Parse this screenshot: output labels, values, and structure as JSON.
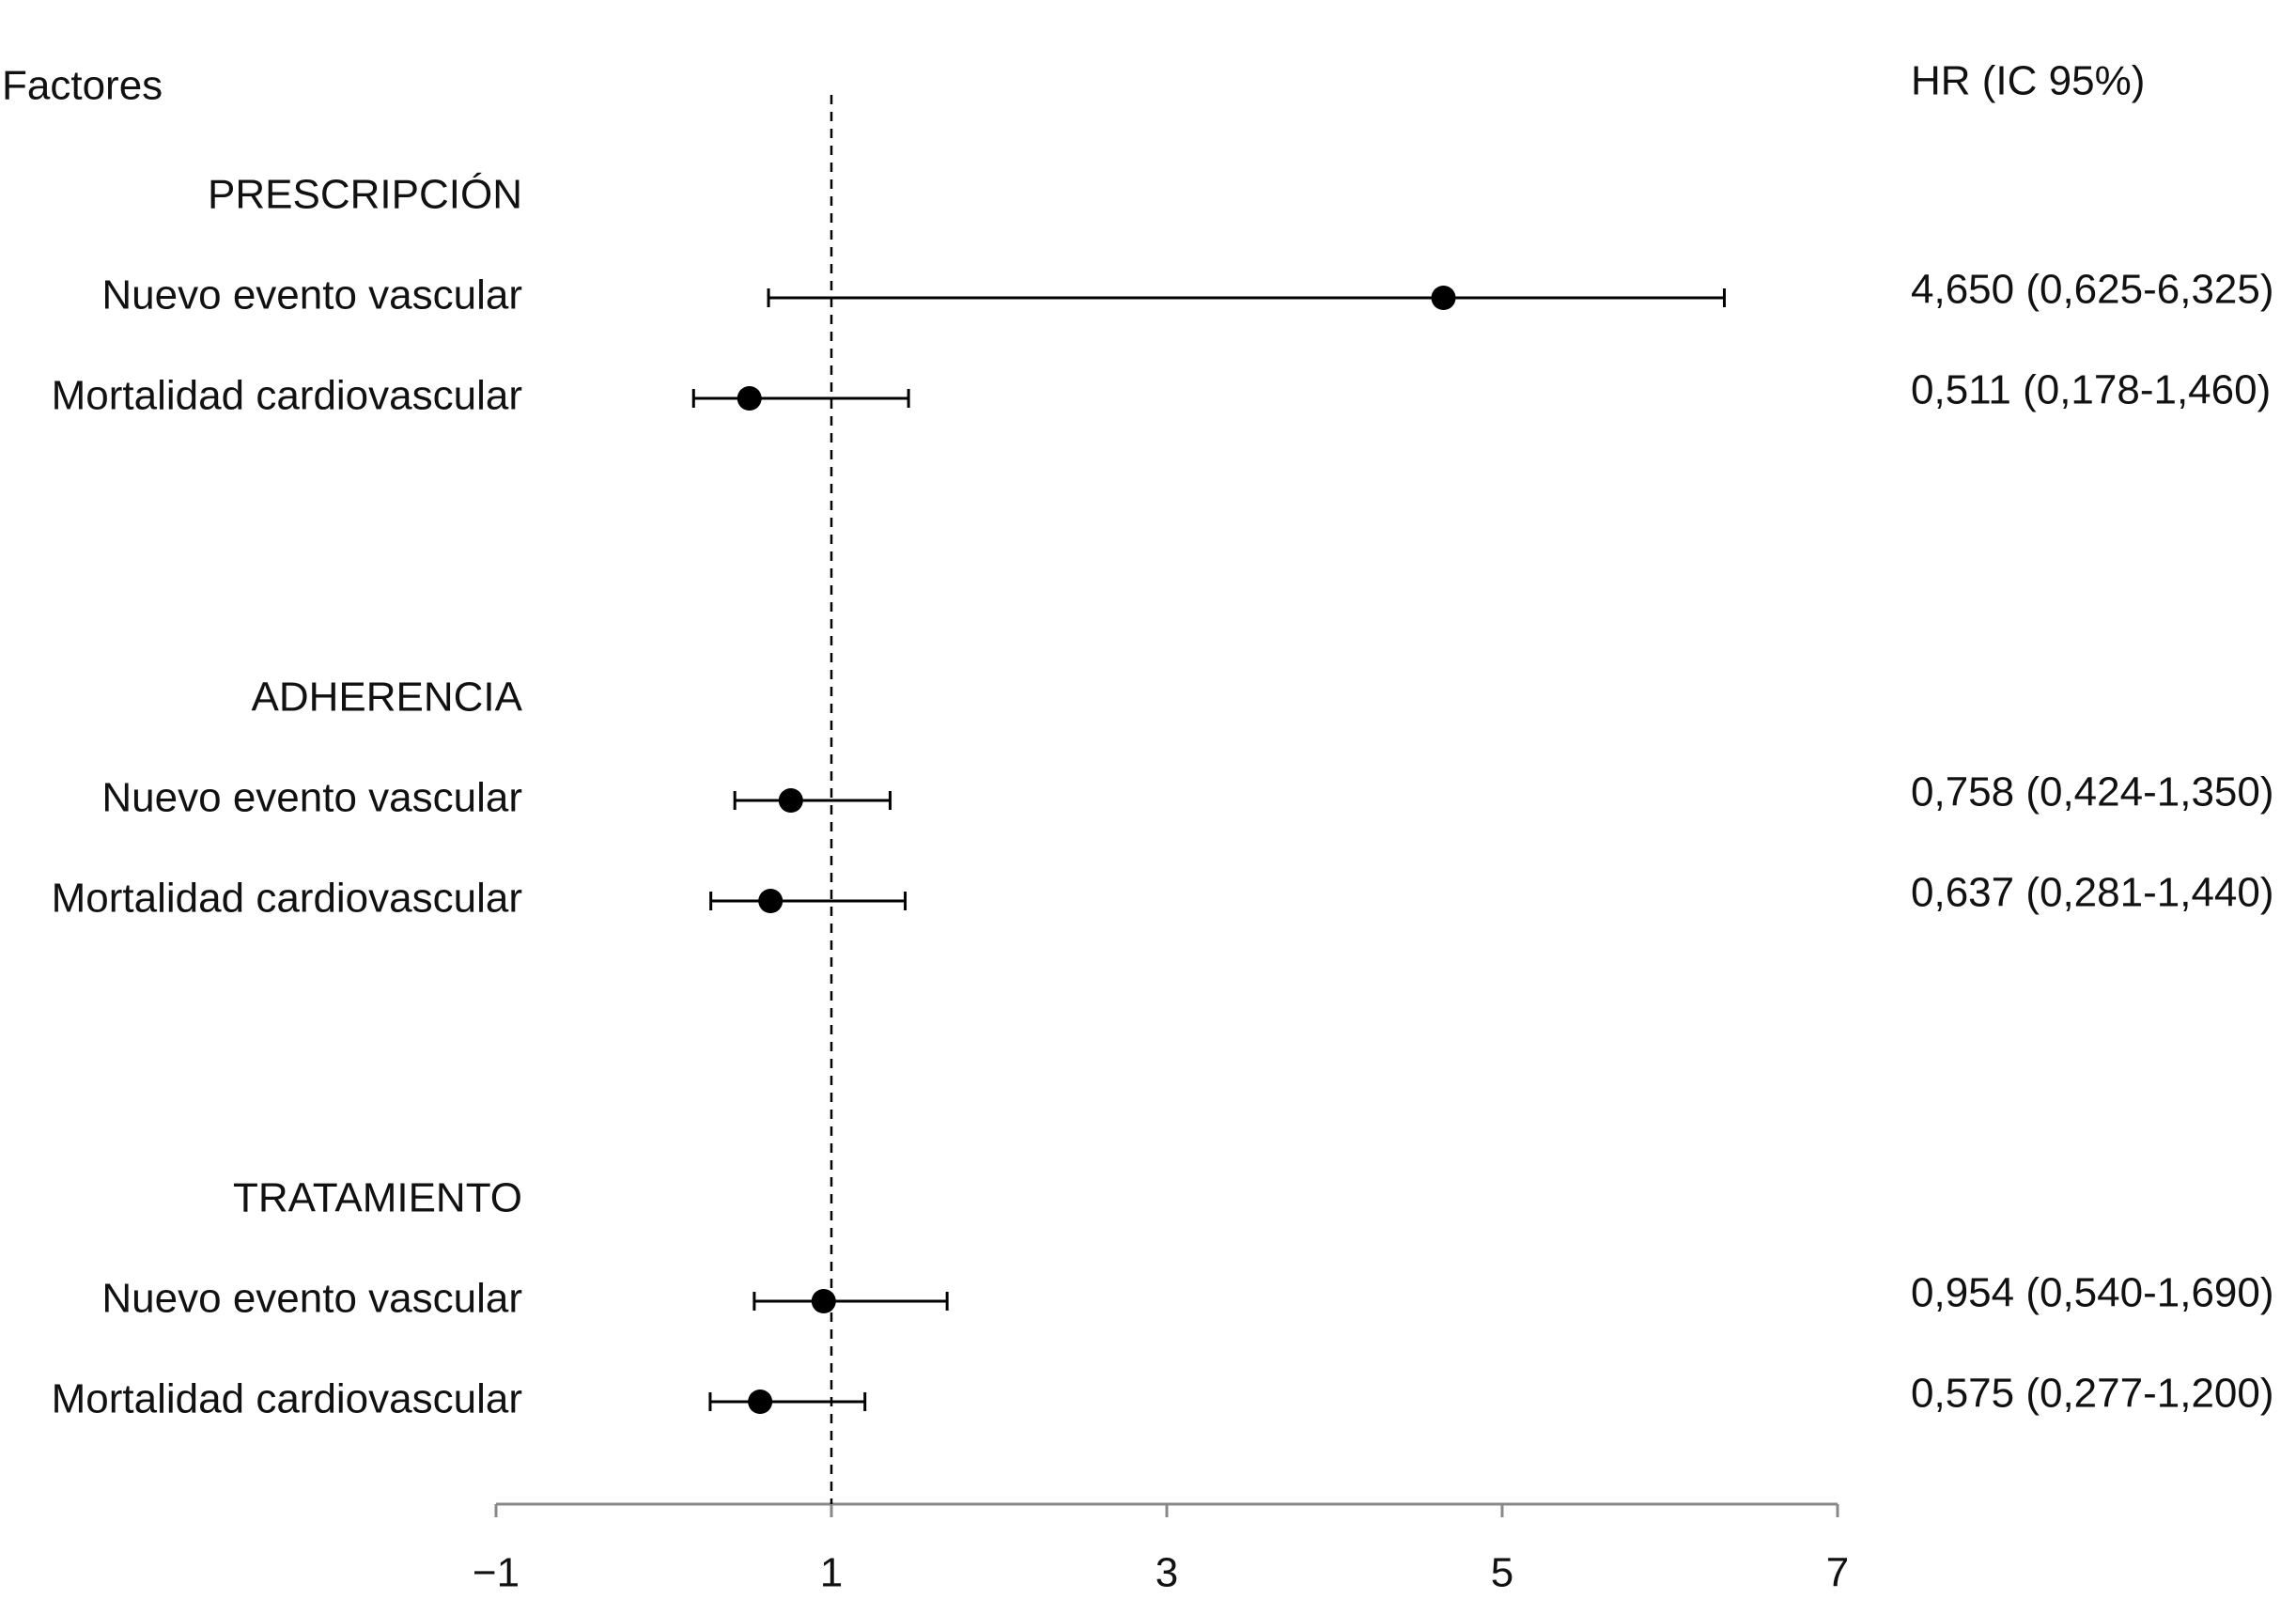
{
  "chart_data": {
    "type": "forest",
    "label_header": "Factores",
    "value_header": "HR (IC 95%)",
    "xlim": [
      -1,
      7
    ],
    "xticks": [
      {
        "value": -1,
        "label": "−1"
      },
      1,
      3,
      5,
      7
    ],
    "reference_x": 1,
    "color": "#000000",
    "groups": [
      {
        "name": "PRESCRIPCIÓN",
        "categories": [
          "Nuevo evento vascular",
          "Mortalidad cardiovascular"
        ],
        "values": [
          4.65,
          0.511
        ],
        "lower": [
          0.625,
          0.178
        ],
        "upper": [
          6.325,
          1.46
        ],
        "value_labels": [
          "4,650 (0,625-6,325)",
          "0,511 (0,178-1,460)"
        ]
      },
      {
        "name": "ADHERENCIA",
        "categories": [
          "Nuevo evento vascular",
          "Mortalidad cardiovascular"
        ],
        "values": [
          0.758,
          0.637
        ],
        "lower": [
          0.424,
          0.281
        ],
        "upper": [
          1.35,
          1.44
        ],
        "value_labels": [
          "0,758 (0,424-1,350)",
          "0,637 (0,281-1,440)"
        ]
      },
      {
        "name": "TRATAMIENTO",
        "categories": [
          "Nuevo evento vascular",
          "Mortalidad cardiovascular"
        ],
        "values": [
          0.954,
          0.575
        ],
        "lower": [
          0.54,
          0.277
        ],
        "upper": [
          1.69,
          1.2
        ],
        "value_labels": [
          "0,954 (0,540-1,690)",
          "0,575 (0,277-1,200)"
        ]
      }
    ]
  }
}
